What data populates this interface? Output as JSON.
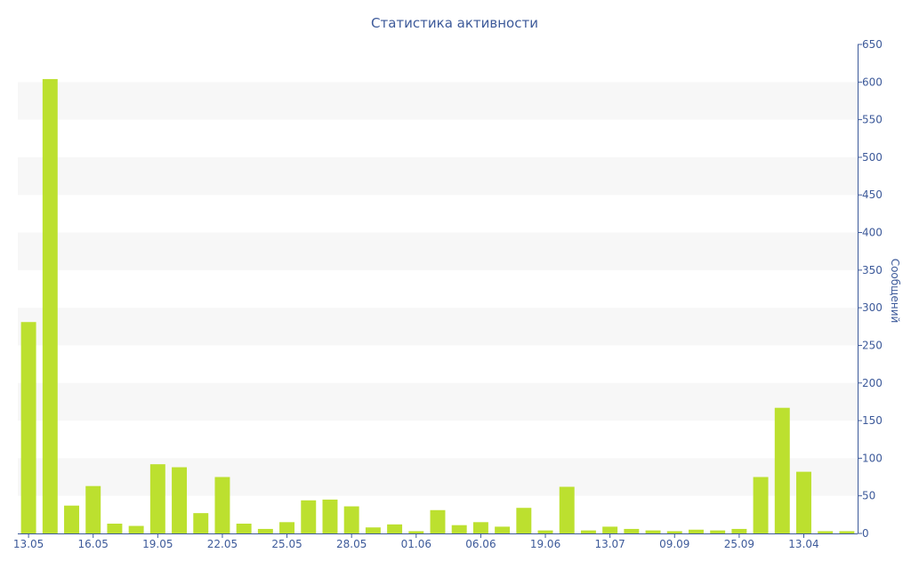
{
  "chart_data": {
    "type": "bar",
    "title": "Статистика активности",
    "ylabel": "Сообщений",
    "ylim": [
      0,
      650
    ],
    "yticks": [
      0,
      50,
      100,
      150,
      200,
      250,
      300,
      350,
      400,
      450,
      500,
      550,
      600,
      650
    ],
    "y_axis_side": "right",
    "grid": "alternating horizontal bands",
    "bar_color": "#bce02f",
    "band_color": "#f7f7f7",
    "text_color": "#3d5a9a",
    "x_tick_labels": [
      {
        "index": 0,
        "label": "13.05"
      },
      {
        "index": 3,
        "label": "16.05"
      },
      {
        "index": 6,
        "label": "19.05"
      },
      {
        "index": 9,
        "label": "22.05"
      },
      {
        "index": 12,
        "label": "25.05"
      },
      {
        "index": 15,
        "label": "28.05"
      },
      {
        "index": 18,
        "label": "01.06"
      },
      {
        "index": 21,
        "label": "06.06"
      },
      {
        "index": 24,
        "label": "19.06"
      },
      {
        "index": 27,
        "label": "13.07"
      },
      {
        "index": 30,
        "label": "09.09"
      },
      {
        "index": 33,
        "label": "25.09"
      },
      {
        "index": 36,
        "label": "13.04"
      }
    ],
    "values": [
      281,
      604,
      37,
      63,
      13,
      10,
      92,
      88,
      27,
      75,
      13,
      6,
      15,
      44,
      45,
      36,
      8,
      12,
      3,
      31,
      11,
      15,
      9,
      34,
      4,
      62,
      4,
      9,
      6,
      4,
      3,
      5,
      4,
      6,
      75,
      167,
      82,
      3,
      3
    ]
  }
}
